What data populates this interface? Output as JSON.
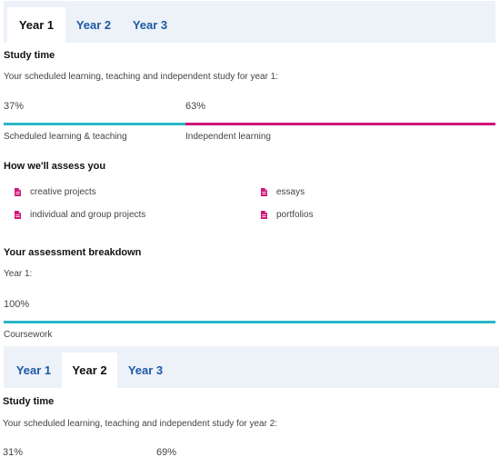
{
  "tabs_top": {
    "items": [
      "Year 1",
      "Year 2",
      "Year 3"
    ],
    "active": 0
  },
  "study_time_1": {
    "heading": "Study time",
    "description": "Your scheduled learning, teaching and independent study for year 1:",
    "segments": [
      {
        "percent_label": "37%",
        "value": 37,
        "label": "Scheduled learning & teaching",
        "color": "#2ab7c9"
      },
      {
        "percent_label": "63%",
        "value": 63,
        "label": "Independent learning",
        "color": "#d0157a"
      }
    ]
  },
  "assess": {
    "heading": "How we'll assess you",
    "icon": "document-icon",
    "icon_color": "#d0157a",
    "items": [
      "creative projects",
      "essays",
      "individual and group projects",
      "portfolios"
    ]
  },
  "breakdown": {
    "heading": "Your assessment breakdown",
    "year_label": "Year 1:",
    "percent_label": "100%",
    "value": 100,
    "label": "Coursework",
    "color": "#2ab7c9"
  },
  "tabs_bottom": {
    "items": [
      "Year 1",
      "Year 2",
      "Year 3"
    ],
    "active": 1
  },
  "study_time_2": {
    "heading": "Study time",
    "description": "Your scheduled learning, teaching and independent study for year 2:",
    "segments": [
      {
        "percent_label": "31%",
        "value": 31
      },
      {
        "percent_label": "69%",
        "value": 69
      }
    ]
  }
}
